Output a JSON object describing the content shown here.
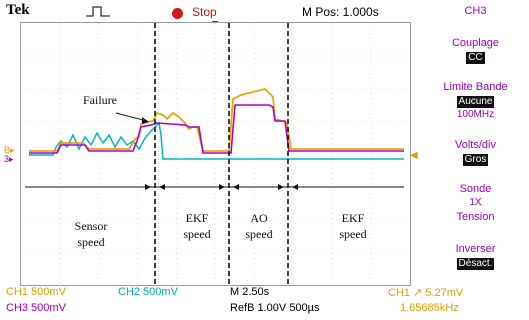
{
  "header": {
    "brand": "Tek",
    "trigger_icon": "pulse-trigger-icon",
    "run_status": "Stop",
    "position": "M Pos: 1.000s"
  },
  "side_menu": {
    "channel": "CH3",
    "coupling": {
      "title": "Couplage",
      "value": "CC"
    },
    "bandwidth": {
      "title": "Limite Bande",
      "value": "Aucune",
      "detail": "100MHz"
    },
    "volts": {
      "title": "Volts/div",
      "value": "Gros"
    },
    "probe": {
      "title": "Sonde",
      "value": "1X",
      "detail": "Tension"
    },
    "invert": {
      "title": "Inverser",
      "value": "Désact."
    }
  },
  "readouts": {
    "ch1": "CH1  500mV",
    "ch2": "CH2  500mV",
    "ch3": "CH3  500mV",
    "timebase": "M 2.50s",
    "ref": "RefB 1.00V 500µs",
    "trigger": "CH1 ↗ 5.27mV",
    "frequency": "1.65685kHz"
  },
  "annotations": {
    "failure": "Failure",
    "segments": [
      {
        "line1": "Sensor",
        "line2": "speed"
      },
      {
        "line1": "EKF",
        "line2": "speed"
      },
      {
        "line1": "AO",
        "line2": "speed"
      },
      {
        "line1": "EKF",
        "line2": "speed"
      }
    ]
  },
  "colors": {
    "ch1": "#e0a000",
    "ch2": "#00a8b8",
    "ch3": "#9a00c0",
    "stop": "#d01818"
  }
}
